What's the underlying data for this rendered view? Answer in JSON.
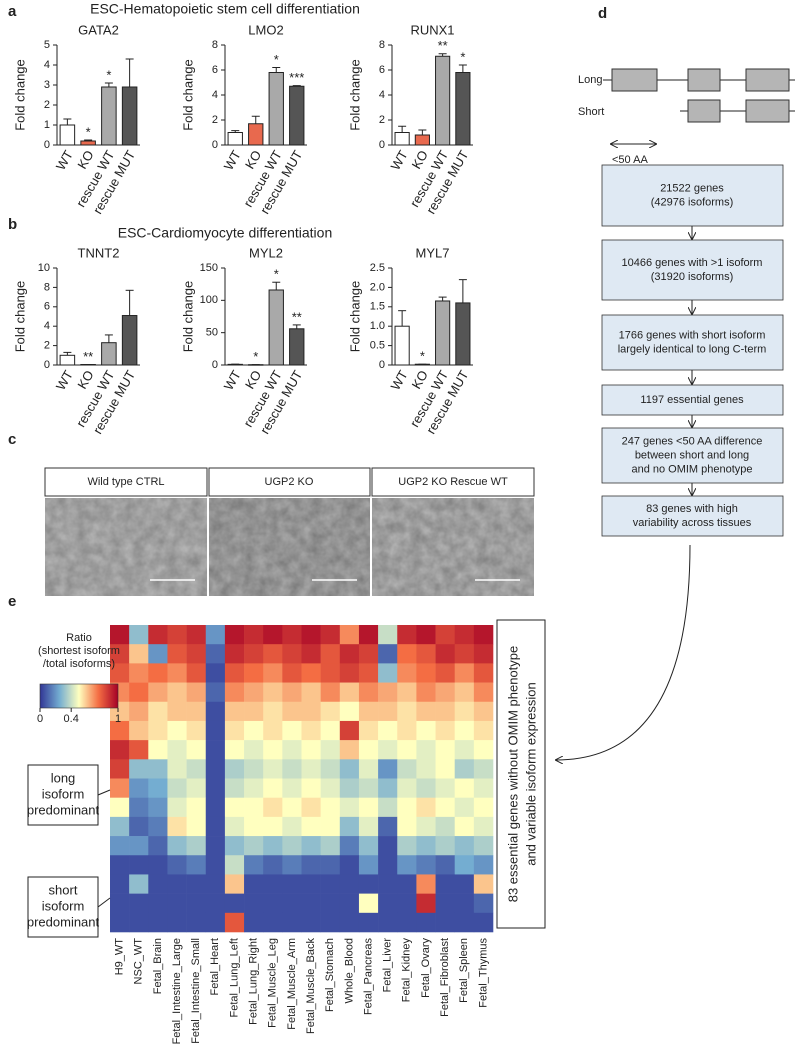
{
  "panel_labels": [
    "a",
    "b",
    "c",
    "d",
    "e"
  ],
  "section_titles": [
    "ESC-Hematopoietic stem cell differentiation",
    "ESC-Cardiomyocyte differentiation"
  ],
  "chart_data": [
    {
      "type": "bar",
      "title": "GATA2",
      "ylabel": "Fold change",
      "categories": [
        "WT",
        "KO",
        "rescue WT",
        "rescue MUT"
      ],
      "values": [
        1.0,
        0.2,
        2.9,
        2.9
      ],
      "errors": [
        0.3,
        0.05,
        0.2,
        1.4
      ],
      "annotations": [
        null,
        "*",
        "*",
        null
      ],
      "colors": [
        "#ffffff",
        "#e8694e",
        "#a9a9a9",
        "#555555"
      ],
      "ylim": [
        0,
        5
      ],
      "yticks": [
        0,
        1,
        2,
        3,
        4,
        5
      ]
    },
    {
      "type": "bar",
      "title": "LMO2",
      "ylabel": "Fold change",
      "categories": [
        "WT",
        "KO",
        "rescue WT",
        "rescue MUT"
      ],
      "values": [
        1.0,
        1.7,
        5.8,
        4.7
      ],
      "errors": [
        0.15,
        0.6,
        0.4,
        0.05
      ],
      "annotations": [
        null,
        null,
        "*",
        "***"
      ],
      "colors": [
        "#ffffff",
        "#e8694e",
        "#a9a9a9",
        "#555555"
      ],
      "ylim": [
        0,
        8
      ],
      "yticks": [
        0,
        2,
        4,
        6,
        8
      ]
    },
    {
      "type": "bar",
      "title": "RUNX1",
      "ylabel": "Fold change",
      "categories": [
        "WT",
        "KO",
        "rescue WT",
        "rescue MUT"
      ],
      "values": [
        1.0,
        0.8,
        7.1,
        5.8
      ],
      "errors": [
        0.5,
        0.4,
        0.2,
        0.6
      ],
      "annotations": [
        null,
        null,
        "**",
        "*"
      ],
      "colors": [
        "#ffffff",
        "#e8694e",
        "#a9a9a9",
        "#555555"
      ],
      "ylim": [
        0,
        8
      ],
      "yticks": [
        0,
        2,
        4,
        6,
        8
      ]
    },
    {
      "type": "bar",
      "title": "TNNT2",
      "ylabel": "Fold change",
      "categories": [
        "WT",
        "KO",
        "rescue WT",
        "rescue MUT"
      ],
      "values": [
        1.0,
        0.05,
        2.3,
        5.1
      ],
      "errors": [
        0.3,
        0.0,
        0.8,
        2.6
      ],
      "annotations": [
        null,
        "**",
        null,
        null
      ],
      "colors": [
        "#ffffff",
        "#e8694e",
        "#a9a9a9",
        "#555555"
      ],
      "ylim": [
        0,
        10
      ],
      "yticks": [
        0,
        2,
        4,
        6,
        8,
        10
      ]
    },
    {
      "type": "bar",
      "title": "MYL2",
      "ylabel": "Fold change",
      "categories": [
        "WT",
        "KO",
        "rescue WT",
        "rescue MUT"
      ],
      "values": [
        1,
        0.5,
        116,
        56
      ],
      "errors": [
        0.3,
        0.1,
        12,
        6
      ],
      "annotations": [
        null,
        "*",
        "*",
        "**"
      ],
      "colors": [
        "#ffffff",
        "#e8694e",
        "#a9a9a9",
        "#555555"
      ],
      "ylim": [
        0,
        150
      ],
      "yticks": [
        0,
        50,
        100,
        150
      ]
    },
    {
      "type": "bar",
      "title": "MYL7",
      "ylabel": "Fold change",
      "categories": [
        "WT",
        "KO",
        "rescue WT",
        "rescue MUT"
      ],
      "values": [
        1.0,
        0.02,
        1.65,
        1.6
      ],
      "errors": [
        0.4,
        0.0,
        0.1,
        0.6
      ],
      "annotations": [
        null,
        "*",
        null,
        null
      ],
      "colors": [
        "#ffffff",
        "#e8694e",
        "#a9a9a9",
        "#555555"
      ],
      "ylim": [
        0,
        2.5
      ],
      "yticks": [
        0,
        0.5,
        {
          "value": 1,
          "label": "1.0"
        },
        1.5,
        {
          "value": 2,
          "label": "2.0"
        },
        2.5
      ]
    },
    {
      "type": "heatmap",
      "columns": [
        "H9_WT",
        "NSC_WT",
        "Fetal_Brain",
        "Fetal_Intestine_Large",
        "Fetal_Intestine_Small",
        "Fetal_Heart",
        "Fetal_Lung_Left",
        "Fetal_Lung_Right",
        "Fetal_Muscle_Leg",
        "Fetal_Muscle_Arm",
        "Fetal_Muscle_Back",
        "Fetal_Stomach",
        "Whole_Blood",
        "Fetal_Pancreas",
        "Fetal_Liver",
        "Fetal_Kidney",
        "Fetal_Ovary",
        "Fetal_Fibroblast",
        "Fetal_Spleen",
        "Fetal_Thymus"
      ],
      "values": [
        [
          0.95,
          0.3,
          0.9,
          0.85,
          0.9,
          0.2,
          0.95,
          0.9,
          0.95,
          0.9,
          0.95,
          0.9,
          0.7,
          0.95,
          0.4,
          0.9,
          0.95,
          0.85,
          0.9,
          0.95
        ],
        [
          0.85,
          0.6,
          0.2,
          0.8,
          0.85,
          0.1,
          0.9,
          0.85,
          0.8,
          0.85,
          0.9,
          0.8,
          0.9,
          0.85,
          0.1,
          0.75,
          0.8,
          0.9,
          0.85,
          0.9
        ],
        [
          0.8,
          0.7,
          0.75,
          0.7,
          0.8,
          0.05,
          0.8,
          0.75,
          0.7,
          0.8,
          0.75,
          0.8,
          0.85,
          0.8,
          0.3,
          0.7,
          0.75,
          0.8,
          0.7,
          0.8
        ],
        [
          0.7,
          0.75,
          0.65,
          0.6,
          0.65,
          0.1,
          0.7,
          0.65,
          0.6,
          0.65,
          0.6,
          0.7,
          0.6,
          0.7,
          0.65,
          0.6,
          0.7,
          0.65,
          0.6,
          0.7
        ],
        [
          0.6,
          0.65,
          0.55,
          0.6,
          0.6,
          0.05,
          0.6,
          0.6,
          0.55,
          0.6,
          0.6,
          0.55,
          0.5,
          0.6,
          0.6,
          0.55,
          0.6,
          0.6,
          0.55,
          0.6
        ],
        [
          0.75,
          0.6,
          0.55,
          0.5,
          0.55,
          0.05,
          0.55,
          0.5,
          0.55,
          0.5,
          0.55,
          0.5,
          0.85,
          0.55,
          0.5,
          0.55,
          0.5,
          0.55,
          0.5,
          0.55
        ],
        [
          0.9,
          0.8,
          0.5,
          0.45,
          0.5,
          0.05,
          0.5,
          0.45,
          0.5,
          0.45,
          0.5,
          0.45,
          0.6,
          0.5,
          0.45,
          0.5,
          0.45,
          0.5,
          0.45,
          0.5
        ],
        [
          0.85,
          0.3,
          0.3,
          0.45,
          0.4,
          0.05,
          0.35,
          0.4,
          0.45,
          0.4,
          0.45,
          0.4,
          0.3,
          0.45,
          0.2,
          0.4,
          0.45,
          0.5,
          0.35,
          0.4
        ],
        [
          0.7,
          0.2,
          0.25,
          0.4,
          0.45,
          0.05,
          0.4,
          0.45,
          0.5,
          0.45,
          0.5,
          0.45,
          0.35,
          0.4,
          0.3,
          0.45,
          0.4,
          0.45,
          0.5,
          0.45
        ],
        [
          0.5,
          0.15,
          0.2,
          0.45,
          0.5,
          0.05,
          0.5,
          0.5,
          0.55,
          0.5,
          0.55,
          0.5,
          0.45,
          0.5,
          0.4,
          0.5,
          0.55,
          0.5,
          0.45,
          0.5
        ],
        [
          0.3,
          0.1,
          0.15,
          0.55,
          0.5,
          0.05,
          0.45,
          0.5,
          0.5,
          0.45,
          0.5,
          0.5,
          0.3,
          0.45,
          0.1,
          0.5,
          0.45,
          0.4,
          0.5,
          0.45
        ],
        [
          0.2,
          0.2,
          0.1,
          0.3,
          0.35,
          0.05,
          0.3,
          0.35,
          0.3,
          0.35,
          0.3,
          0.35,
          0.15,
          0.3,
          0.05,
          0.35,
          0.3,
          0.35,
          0.3,
          0.35
        ],
        [
          0.05,
          0.05,
          0.05,
          0.1,
          0.15,
          0.05,
          0.4,
          0.15,
          0.1,
          0.15,
          0.1,
          0.1,
          0.05,
          0.2,
          0.05,
          0.2,
          0.15,
          0.1,
          0.25,
          0.2
        ],
        [
          0.05,
          0.3,
          0.05,
          0.05,
          0.05,
          0.05,
          0.6,
          0.05,
          0.05,
          0.05,
          0.05,
          0.05,
          0.05,
          0.05,
          0.05,
          0.05,
          0.7,
          0.05,
          0.05,
          0.6
        ],
        [
          0.05,
          0.05,
          0.05,
          0.05,
          0.05,
          0.05,
          0.05,
          0.05,
          0.05,
          0.05,
          0.05,
          0.05,
          0.05,
          0.5,
          0.05,
          0.05,
          0.9,
          0.05,
          0.05,
          0.1
        ],
        [
          0.05,
          0.05,
          0.05,
          0.05,
          0.05,
          0.05,
          0.8,
          0.05,
          0.05,
          0.05,
          0.05,
          0.05,
          0.05,
          0.05,
          0.05,
          0.05,
          0.05,
          0.05,
          0.05,
          0.05
        ]
      ],
      "zlim": [
        0,
        1
      ],
      "colorbar_label": [
        "Ratio",
        "(shortest isoform",
        "/total isoforms)"
      ],
      "colorbar_ticks": [
        0,
        0.4,
        1
      ],
      "annotations": [
        [
          "long",
          "isoform",
          "predominant"
        ],
        [
          "short",
          "isoform",
          "predominant"
        ]
      ],
      "side_label": [
        "83  essential genes without OMIM phenotype",
        "and variable isoform expression"
      ]
    }
  ],
  "panel_c": {
    "labels": [
      "Wild type CTRL",
      "UGP2 KO",
      "UGP2 KO Rescue WT"
    ]
  },
  "flowchart": {
    "gene_labels": [
      "Long",
      "Short",
      "<50 AA"
    ],
    "boxes": [
      [
        "21522 genes",
        "(42976 isoforms)"
      ],
      [
        "10466 genes with >1 isoform",
        "(31920 isoforms)"
      ],
      [
        "1766 genes with short isoform",
        "largely identical to long C-term"
      ],
      [
        "1197 essential genes"
      ],
      [
        "247 genes <50 AA difference",
        "between short and long",
        "and no OMIM phenotype"
      ],
      [
        "83 genes with high",
        "variability across tissues"
      ]
    ]
  }
}
